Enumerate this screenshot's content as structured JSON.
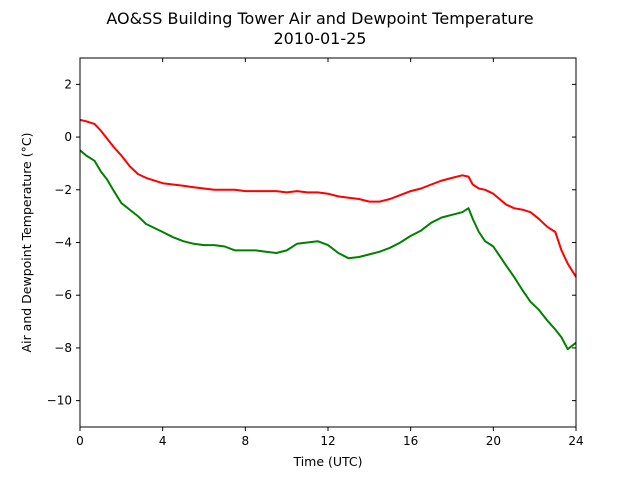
{
  "chart_data": {
    "type": "line",
    "title": "AO&SS Building Tower Air and Dewpoint Temperature",
    "subtitle": "2010-01-25",
    "xlabel": "Time (UTC)",
    "ylabel": "Air and Dewpoint Temperature (°C)",
    "xlim": [
      0,
      24
    ],
    "ylim": [
      -11,
      3
    ],
    "xticks": [
      0,
      4,
      8,
      12,
      16,
      20,
      24
    ],
    "yticks": [
      -10,
      -8,
      -6,
      -4,
      -2,
      0,
      2
    ],
    "grid": false,
    "legend": "none",
    "series": [
      {
        "color": "#ff0000",
        "x": [
          0,
          0.3,
          0.7,
          1.0,
          1.3,
          1.6,
          2.0,
          2.4,
          2.8,
          3.2,
          3.6,
          4.0,
          4.5,
          5.0,
          5.5,
          6.0,
          6.5,
          7.0,
          7.5,
          8.0,
          8.5,
          9.0,
          9.5,
          10.0,
          10.5,
          11.0,
          11.5,
          12.0,
          12.5,
          13.0,
          13.5,
          14.0,
          14.5,
          15.0,
          15.5,
          16.0,
          16.5,
          17.0,
          17.5,
          18.0,
          18.5,
          18.8,
          19.0,
          19.3,
          19.6,
          20.0,
          20.3,
          20.6,
          21.0,
          21.4,
          21.8,
          22.2,
          22.6,
          23.0,
          23.3,
          23.6,
          24.0
        ],
        "values": [
          0.65,
          0.6,
          0.5,
          0.25,
          -0.05,
          -0.35,
          -0.7,
          -1.1,
          -1.4,
          -1.55,
          -1.65,
          -1.75,
          -1.8,
          -1.85,
          -1.9,
          -1.95,
          -2.0,
          -2.0,
          -2.0,
          -2.05,
          -2.05,
          -2.05,
          -2.05,
          -2.1,
          -2.05,
          -2.1,
          -2.1,
          -2.15,
          -2.25,
          -2.3,
          -2.35,
          -2.45,
          -2.45,
          -2.35,
          -2.2,
          -2.05,
          -1.95,
          -1.8,
          -1.65,
          -1.55,
          -1.45,
          -1.5,
          -1.8,
          -1.95,
          -2.0,
          -2.15,
          -2.35,
          -2.55,
          -2.7,
          -2.75,
          -2.85,
          -3.1,
          -3.4,
          -3.6,
          -4.3,
          -4.8,
          -5.3
        ]
      },
      {
        "color": "#008000",
        "x": [
          0,
          0.3,
          0.7,
          1.0,
          1.3,
          1.6,
          2.0,
          2.4,
          2.8,
          3.2,
          3.6,
          4.0,
          4.5,
          5.0,
          5.5,
          6.0,
          6.5,
          7.0,
          7.5,
          8.0,
          8.5,
          9.0,
          9.5,
          10.0,
          10.5,
          11.0,
          11.5,
          12.0,
          12.5,
          13.0,
          13.5,
          14.0,
          14.5,
          15.0,
          15.5,
          16.0,
          16.5,
          17.0,
          17.5,
          18.0,
          18.5,
          18.8,
          19.0,
          19.3,
          19.6,
          20.0,
          20.3,
          20.6,
          21.0,
          21.4,
          21.8,
          22.2,
          22.6,
          23.0,
          23.3,
          23.6,
          24.0
        ],
        "values": [
          -0.5,
          -0.7,
          -0.9,
          -1.3,
          -1.6,
          -2.0,
          -2.5,
          -2.75,
          -3.0,
          -3.3,
          -3.45,
          -3.6,
          -3.8,
          -3.95,
          -4.05,
          -4.1,
          -4.1,
          -4.15,
          -4.3,
          -4.3,
          -4.3,
          -4.35,
          -4.4,
          -4.3,
          -4.05,
          -4.0,
          -3.95,
          -4.1,
          -4.4,
          -4.6,
          -4.55,
          -4.45,
          -4.35,
          -4.2,
          -4.0,
          -3.75,
          -3.55,
          -3.25,
          -3.05,
          -2.95,
          -2.85,
          -2.7,
          -3.1,
          -3.6,
          -3.95,
          -4.15,
          -4.5,
          -4.85,
          -5.3,
          -5.8,
          -6.25,
          -6.55,
          -6.95,
          -7.3,
          -7.6,
          -8.05,
          -7.8
        ]
      }
    ]
  }
}
